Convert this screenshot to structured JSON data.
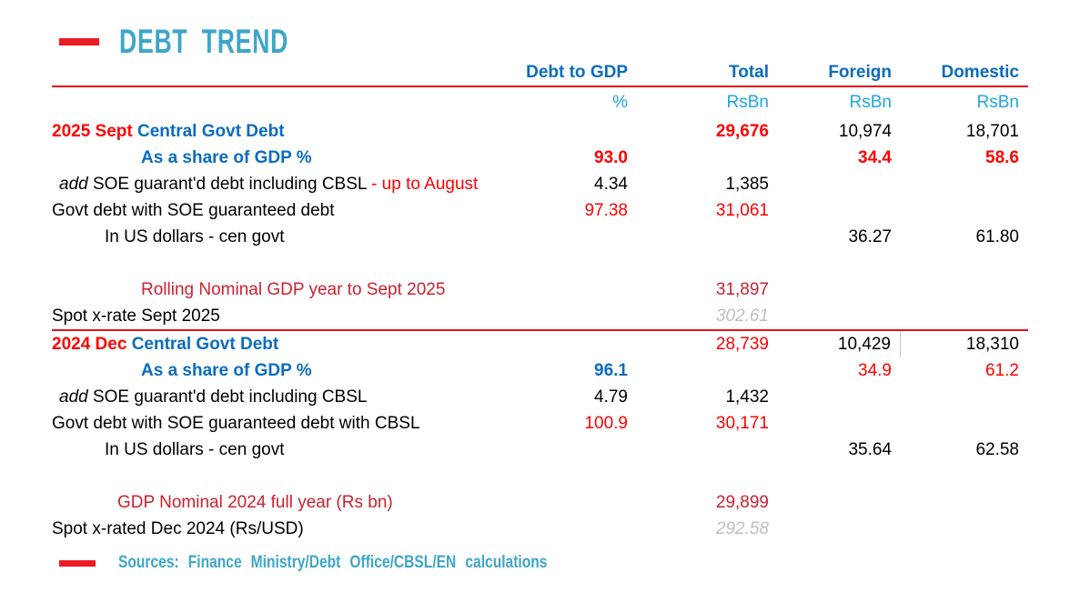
{
  "title": {
    "text": "DEBT TREND"
  },
  "footer": {
    "text": "Sources: Finance Ministry/Debt Office/CBSL/EN calculations"
  },
  "colors": {
    "red": "#ff0000",
    "crimson": "#cd2130",
    "blue": "#0a6cbf",
    "cyan": "#1fa7df",
    "gray": "#bfbfbf",
    "black": "#000000",
    "title_cyan": "#3ea6c9",
    "line_red": "#e31219",
    "dash_red": "#ec1c24"
  },
  "table": {
    "columns": [
      "Debt to GDP",
      "Total",
      "Foreign",
      "Domestic"
    ],
    "units": [
      "%",
      "RsBn",
      "RsBn",
      "RsBn"
    ],
    "rows": [
      {
        "label": [
          {
            "t": "2025 Sept ",
            "c": "red",
            "b": 1
          },
          {
            "t": "Central Govt Debt",
            "c": "blue",
            "b": 1
          }
        ],
        "cells": [
          null,
          {
            "t": "29,676",
            "c": "red",
            "b": 1
          },
          {
            "t": "10,974"
          },
          {
            "t": "18,701"
          }
        ]
      },
      {
        "indent": 98,
        "label": [
          {
            "t": "As a share of GDP %",
            "c": "blue",
            "b": 1
          }
        ],
        "cells": [
          {
            "t": "93.0",
            "c": "red",
            "b": 1
          },
          null,
          {
            "t": "34.4",
            "c": "red",
            "b": 1
          },
          {
            "t": "58.6",
            "c": "red",
            "b": 1
          }
        ]
      },
      {
        "indent": 8,
        "label": [
          {
            "t": "add",
            "i": 1
          },
          {
            "t": "  SOE guarant'd debt including CBSL "
          },
          {
            "t": "- up to August",
            "c": "red"
          }
        ],
        "cells": [
          {
            "t": "4.34"
          },
          {
            "t": "1,385"
          },
          null,
          null
        ]
      },
      {
        "label": [
          {
            "t": "Govt debt with SOE guaranteed debt"
          }
        ],
        "cells": [
          {
            "t": "97.38",
            "c": "red"
          },
          {
            "t": "31,061",
            "c": "red"
          },
          null,
          null
        ]
      },
      {
        "indent": 58,
        "label": [
          {
            "t": "In US dollars - cen govt"
          }
        ],
        "cells": [
          null,
          null,
          {
            "t": "36.27"
          },
          {
            "t": "61.80"
          }
        ]
      },
      {
        "blank": true
      },
      {
        "indent": 98,
        "label": [
          {
            "t": "Rolling Nominal GDP year to Sept 2025",
            "c": "crimson"
          }
        ],
        "cells": [
          null,
          {
            "t": "31,897",
            "c": "crimson"
          },
          null,
          null
        ]
      },
      {
        "label": [
          {
            "t": "Spot x-rate Sept 2025"
          }
        ],
        "cells": [
          null,
          {
            "t": "302.61",
            "c": "gray",
            "i": 1
          },
          null,
          null
        ],
        "divider_after": true
      },
      {
        "label": [
          {
            "t": "2024 Dec ",
            "c": "red",
            "b": 1
          },
          {
            "t": "Central Govt Debt",
            "c": "blue",
            "b": 1
          }
        ],
        "cells": [
          null,
          {
            "t": "28,739",
            "c": "red"
          },
          {
            "t": "10,429",
            "vline": 1
          },
          {
            "t": "18,310"
          }
        ]
      },
      {
        "indent": 98,
        "label": [
          {
            "t": "As a share of GDP %",
            "c": "blue",
            "b": 1
          }
        ],
        "cells": [
          {
            "t": "96.1",
            "c": "blue",
            "b": 1
          },
          null,
          {
            "t": "34.9",
            "c": "red"
          },
          {
            "t": "61.2",
            "c": "red"
          }
        ]
      },
      {
        "indent": 8,
        "label": [
          {
            "t": "add",
            "i": 1
          },
          {
            "t": "  SOE guarant'd debt including CBSL"
          }
        ],
        "cells": [
          {
            "t": "4.79"
          },
          {
            "t": "1,432"
          },
          null,
          null
        ]
      },
      {
        "label": [
          {
            "t": "Govt debt with SOE guaranteed debt with CBSL"
          }
        ],
        "cells": [
          {
            "t": "100.9",
            "c": "red"
          },
          {
            "t": "30,171",
            "c": "red"
          },
          null,
          null
        ]
      },
      {
        "indent": 58,
        "label": [
          {
            "t": "In US dollars - cen govt"
          }
        ],
        "cells": [
          null,
          null,
          {
            "t": "35.64"
          },
          {
            "t": "62.58"
          }
        ]
      },
      {
        "blank": true
      },
      {
        "indent": 72,
        "label": [
          {
            "t": "GDP Nominal 2024 full year (Rs bn)",
            "c": "crimson"
          }
        ],
        "cells": [
          null,
          {
            "t": "29,899",
            "c": "crimson"
          },
          null,
          null
        ]
      },
      {
        "label": [
          {
            "t": "Spot x-rated Dec 2024 (Rs/USD)"
          }
        ],
        "cells": [
          null,
          {
            "t": "292.58",
            "c": "gray",
            "i": 1
          },
          null,
          null
        ]
      }
    ]
  }
}
